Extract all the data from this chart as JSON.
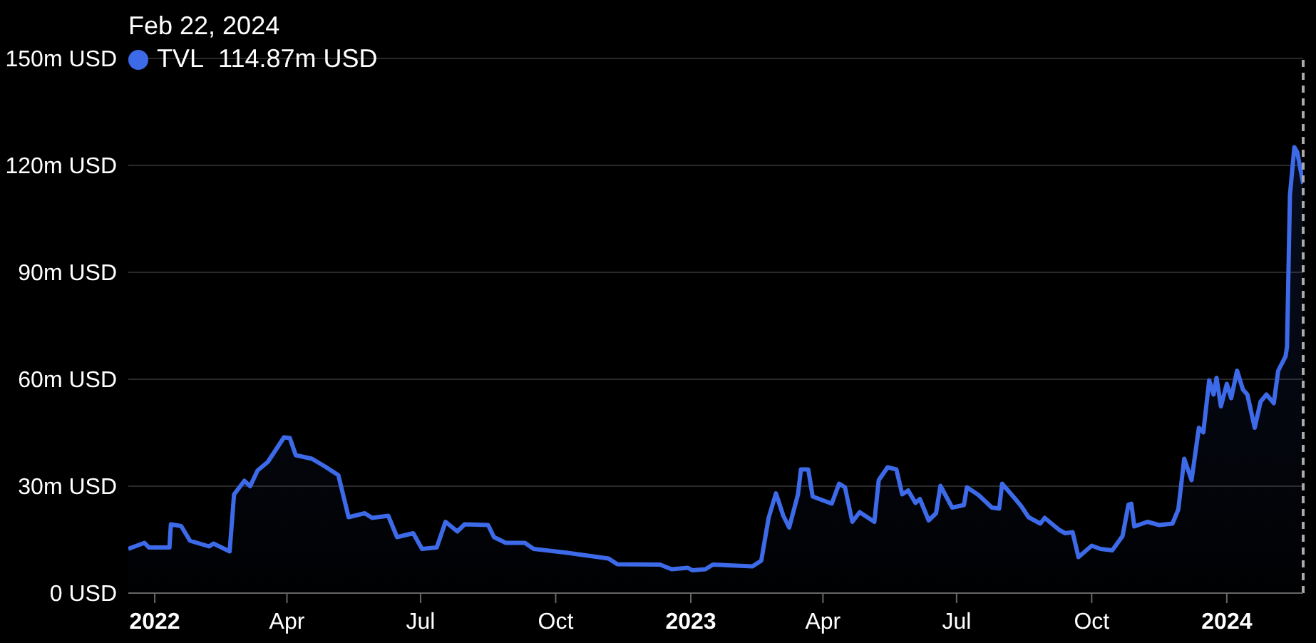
{
  "chart_data": {
    "type": "area",
    "x": [
      "2021-12-14",
      "2021-12-25",
      "2021-12-28",
      "2022-01-11",
      "2022-01-12",
      "2022-01-19",
      "2022-01-25",
      "2022-02-07",
      "2022-02-10",
      "2022-02-21",
      "2022-02-24",
      "2022-03-03",
      "2022-03-07",
      "2022-03-12",
      "2022-03-19",
      "2022-03-30",
      "2022-04-03",
      "2022-04-07",
      "2022-04-18",
      "2022-04-27",
      "2022-05-06",
      "2022-05-13",
      "2022-05-24",
      "2022-05-29",
      "2022-06-09",
      "2022-06-15",
      "2022-06-26",
      "2022-07-02",
      "2022-07-12",
      "2022-07-18",
      "2022-07-26",
      "2022-07-31",
      "2022-08-16",
      "2022-08-20",
      "2022-08-28",
      "2022-09-10",
      "2022-09-16",
      "2022-10-09",
      "2022-11-06",
      "2022-11-12",
      "2022-12-11",
      "2022-12-19",
      "2022-12-30",
      "2023-01-02",
      "2023-01-11",
      "2023-01-16",
      "2023-02-12",
      "2023-02-18",
      "2023-02-23",
      "2023-02-28",
      "2023-03-05",
      "2023-03-09",
      "2023-03-15",
      "2023-03-17",
      "2023-03-22",
      "2023-03-25",
      "2023-04-07",
      "2023-04-12",
      "2023-04-16",
      "2023-04-21",
      "2023-04-26",
      "2023-05-06",
      "2023-05-09",
      "2023-05-15",
      "2023-05-21",
      "2023-05-25",
      "2023-05-29",
      "2023-06-03",
      "2023-06-06",
      "2023-06-12",
      "2023-06-17",
      "2023-06-20",
      "2023-06-28",
      "2023-07-06",
      "2023-07-08",
      "2023-07-16",
      "2023-07-25",
      "2023-07-30",
      "2023-08-01",
      "2023-08-10",
      "2023-08-14",
      "2023-08-19",
      "2023-08-27",
      "2023-08-30",
      "2023-09-09",
      "2023-09-13",
      "2023-09-18",
      "2023-09-22",
      "2023-10-01",
      "2023-10-07",
      "2023-10-15",
      "2023-10-22",
      "2023-10-26",
      "2023-10-28",
      "2023-10-30",
      "2023-11-08",
      "2023-11-16",
      "2023-11-25",
      "2023-11-29",
      "2023-12-03",
      "2023-12-08",
      "2023-12-13",
      "2023-12-16",
      "2023-12-20",
      "2023-12-23",
      "2023-12-25",
      "2023-12-28",
      "2024-01-01",
      "2024-01-04",
      "2024-01-08",
      "2024-01-12",
      "2024-01-15",
      "2024-01-20",
      "2024-01-24",
      "2024-01-28",
      "2024-02-02",
      "2024-02-05",
      "2024-02-10",
      "2024-02-11",
      "2024-02-13",
      "2024-02-16",
      "2024-02-18",
      "2024-02-22"
    ],
    "series": [
      {
        "name": "TVL",
        "color": "#3d6ae8",
        "values": [
          12.4,
          14.1,
          12.8,
          12.8,
          19.3,
          18.8,
          14.7,
          13.1,
          13.9,
          11.7,
          27.7,
          31.5,
          30,
          34.4,
          36.8,
          43.7,
          43.5,
          38.7,
          37.7,
          35.5,
          33.1,
          21.3,
          22.4,
          21.1,
          21.7,
          15.7,
          16.8,
          12.4,
          12.8,
          20,
          17.3,
          19.3,
          19.1,
          15.7,
          14.1,
          14.1,
          12.4,
          11.3,
          9.7,
          8.1,
          8,
          6.7,
          7.1,
          6.4,
          6.7,
          8,
          7.5,
          9.1,
          21.1,
          28,
          21.7,
          18.4,
          27.7,
          34.7,
          34.7,
          27.1,
          25.1,
          30.7,
          29.7,
          20,
          22.7,
          20,
          31.7,
          35.3,
          34.7,
          27.7,
          28.8,
          25.3,
          26.4,
          20.4,
          22.4,
          30.1,
          24,
          24.7,
          29.7,
          27.5,
          24,
          23.7,
          30.7,
          26.4,
          24.4,
          21.3,
          19.5,
          21.1,
          17.7,
          16.8,
          17.1,
          10.1,
          13.3,
          12.4,
          12,
          16,
          24.8,
          25.1,
          18.7,
          20,
          19.1,
          19.5,
          23.5,
          37.7,
          31.7,
          46.4,
          45.1,
          59.7,
          55.7,
          60.4,
          52.4,
          58.7,
          54.7,
          62.4,
          57.1,
          55.7,
          46.4,
          53.7,
          55.7,
          53.3,
          62.4,
          66.4,
          69.1,
          111.7,
          125.1,
          123.7,
          114.87
        ]
      }
    ],
    "xlim": [
      "2021-12-14",
      "2024-02-22"
    ],
    "xticks": [
      {
        "value": "2022-01-01",
        "label": "2022"
      },
      {
        "value": "2022-04-01",
        "label": "Apr"
      },
      {
        "value": "2022-07-01",
        "label": "Jul"
      },
      {
        "value": "2022-10-01",
        "label": "Oct"
      },
      {
        "value": "2023-01-01",
        "label": "2023"
      },
      {
        "value": "2023-04-01",
        "label": "Apr"
      },
      {
        "value": "2023-07-01",
        "label": "Jul"
      },
      {
        "value": "2023-10-01",
        "label": "Oct"
      },
      {
        "value": "2024-01-01",
        "label": "2024"
      }
    ],
    "ylim": [
      0,
      150
    ],
    "yticks": [
      {
        "value": 0,
        "label": "0 USD"
      },
      {
        "value": 30,
        "label": "30m USD"
      },
      {
        "value": 60,
        "label": "60m USD"
      },
      {
        "value": 90,
        "label": "90m USD"
      },
      {
        "value": 120,
        "label": "120m USD"
      },
      {
        "value": 150,
        "label": "150m USD"
      }
    ],
    "grid": "y",
    "legend": "top left",
    "ref_lines": [
      {
        "axis": "x",
        "value": "2024-02-22",
        "color": "#aaaaaa",
        "line_style": "dashed"
      }
    ],
    "annotations": [
      "Feb 22, 2024",
      "114.87m USD"
    ]
  }
}
